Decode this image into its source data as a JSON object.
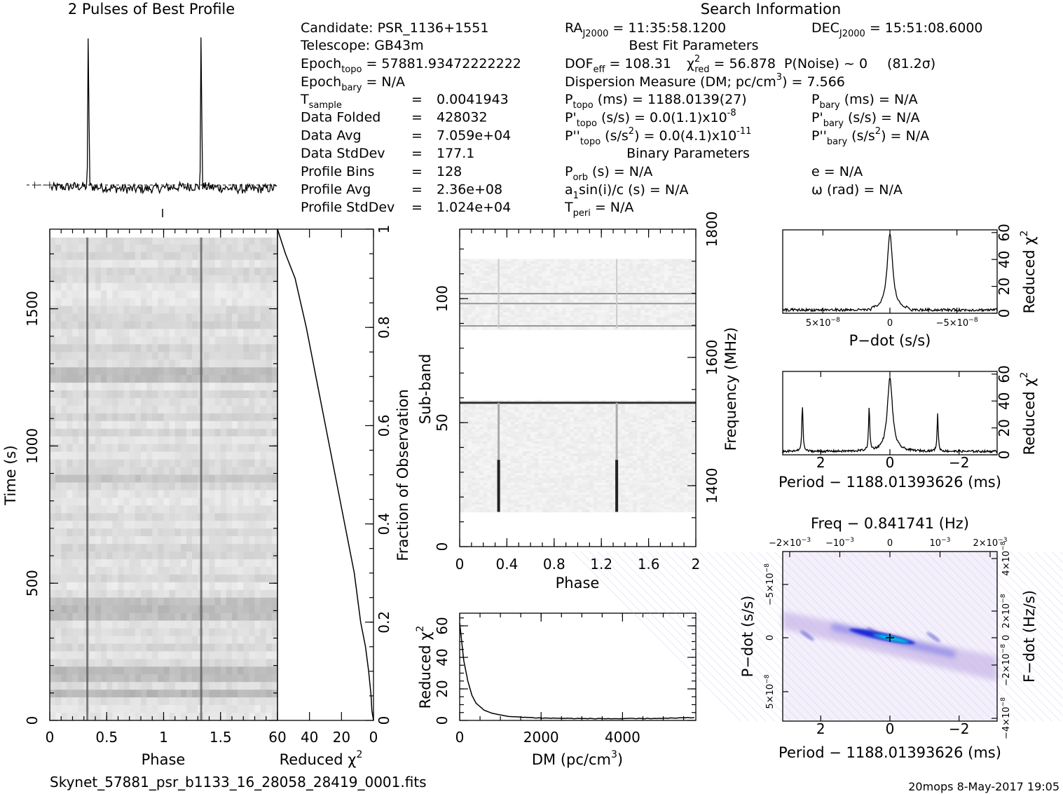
{
  "filename": "Skynet_57881_psr_b1133_16_28058_28419_0001.fits",
  "footer_right": "20mops  8-May-2017 19:05",
  "header": {
    "profile_title": "2 Pulses of Best Profile",
    "search_title": "Search Information",
    "best_fit_title": "Best Fit Parameters",
    "binary_title": "Binary Parameters"
  },
  "candidate_info": {
    "candidate": "Candidate:  PSR_1136+1551",
    "telescope": "Telescope:  GB43m",
    "epoch_topo_label": "Epoch",
    "epoch_topo_sub": "topo",
    "epoch_topo_value": "= 57881.93472222222",
    "epoch_bary_label": "Epoch",
    "epoch_bary_sub": "bary",
    "epoch_bary_value": "= N/A",
    "rows": [
      {
        "label": "T",
        "sub": "sample",
        "eq": "=",
        "value": "0.0041943"
      },
      {
        "label": "Data Folded",
        "sub": "",
        "eq": "=",
        "value": "428032"
      },
      {
        "label": "Data Avg",
        "sub": "",
        "eq": "=",
        "value": "7.059e+04"
      },
      {
        "label": "Data StdDev",
        "sub": "",
        "eq": "=",
        "value": "177.1"
      },
      {
        "label": "Profile Bins",
        "sub": "",
        "eq": "=",
        "value": "128"
      },
      {
        "label": "Profile Avg",
        "sub": "",
        "eq": "=",
        "value": "2.36e+08"
      },
      {
        "label": "Profile StdDev",
        "sub": "",
        "eq": "=",
        "value": "1.024e+04"
      }
    ]
  },
  "search_info": {
    "ra_label": "RA",
    "ra_sub": "J2000",
    "ra_value": "= 11:35:58.1200",
    "dec_label": "DEC",
    "dec_sub": "J2000",
    "dec_value": "= 15:51:08.6000",
    "dof_label": "DOF",
    "dof_sub": "eff",
    "dof_value": "= 108.31",
    "chi_label": "χ",
    "chi_sup": "2",
    "chi_sub": "red",
    "chi_value": "= 56.878",
    "pnoise": "P(Noise) ~ 0",
    "sigma": "(81.2σ)",
    "dm_text": "Dispersion Measure (DM; pc/cm",
    "dm_sup": "3",
    "dm_value": ") = 7.566",
    "ptopo_label": "P",
    "ptopo_sub": "topo",
    "ptopo_value": "(ms) =  1188.0139(27)",
    "pbary_label": "P",
    "pbary_sub": "bary",
    "pbary_value": "(ms) = N/A",
    "pdtopo_label": "P'",
    "pdtopo_sub": "topo",
    "pdtopo_value": "(s/s) = 0.0(1.1)x10",
    "pdtopo_exp": "-8",
    "pdbary_label": "P'",
    "pdbary_sub": "bary",
    "pdbary_value": "(s/s) = N/A",
    "pddtopo_label": "P''",
    "pddtopo_sub": "topo",
    "pddtopo_value": "(s/s",
    "pddtopo_sup": "2",
    "pddtopo_value2": ") = 0.0(4.1)x10",
    "pddtopo_exp": "-11",
    "pddbary_label": "P''",
    "pddbary_sub": "bary",
    "pddbary_value": "(s/s",
    "pddbary_sup": "2",
    "pddbary_value2": ") = N/A",
    "porb_label": "P",
    "porb_sub": "orb",
    "porb_value": "(s) = N/A",
    "e_text": "e = N/A",
    "a1_label": "a",
    "a1_sub": "1",
    "a1_value": "sin(i)/c (s) = N/A",
    "omega_text": "ω (rad) = N/A",
    "tperi_label": "T",
    "tperi_sub": "peri",
    "tperi_value": "= N/A"
  },
  "colors": {
    "line": "#000000",
    "grey_dark": "#555555",
    "ppdot_purple": "#c9b8e8",
    "ppdot_blue": "#1a2ad8",
    "ppdot_cyan": "#00c8e0"
  },
  "chart_data": [
    {
      "id": "profile",
      "type": "line",
      "title": "2 Pulses of Best Profile",
      "x": "phase 0 to 2 (128 bins per pulse)",
      "peaks_phase": [
        0.33,
        1.33
      ],
      "baseline_level": 0.03,
      "peak_level": 1.0
    },
    {
      "id": "time_phase",
      "type": "heatmap",
      "xlabel": "Phase",
      "ylabel": "Time (s)",
      "xlim": [
        0,
        2
      ],
      "ylim": [
        0,
        1790
      ],
      "xticks": [
        "0",
        "0.5",
        "1",
        "1.5"
      ],
      "yticks": [
        "0",
        "500",
        "1000",
        "1500"
      ],
      "pulse_phase": [
        0.33,
        1.33
      ],
      "dark_time_bands": [
        100,
        160,
        380,
        430,
        880,
        1260
      ]
    },
    {
      "id": "time_chi2",
      "type": "line",
      "xlabel": "Reduced χ",
      "xlabel_sup": "2",
      "ylabel": "Fraction of Observation",
      "xlim": [
        60,
        0
      ],
      "ylim": [
        0,
        1
      ],
      "xticks": [
        "60",
        "40",
        "20",
        "0"
      ],
      "yticks": [
        "0",
        "0.2",
        "0.4",
        "0.6",
        "0.8",
        "1"
      ],
      "points_chi2_vs_fraction": [
        [
          0,
          0
        ],
        [
          1,
          0.02
        ],
        [
          1.5,
          0.05
        ],
        [
          3,
          0.1
        ],
        [
          5,
          0.15
        ],
        [
          8,
          0.2
        ],
        [
          12,
          0.3
        ],
        [
          18,
          0.4
        ],
        [
          24,
          0.5
        ],
        [
          30,
          0.6
        ],
        [
          36,
          0.7
        ],
        [
          42,
          0.8
        ],
        [
          49,
          0.9
        ],
        [
          55,
          0.95
        ],
        [
          60,
          1.0
        ]
      ]
    },
    {
      "id": "subband_phase",
      "type": "heatmap",
      "xlabel": "Phase",
      "ylabel": "Sub-band",
      "y2label": "Frequency (MHz)",
      "xlim": [
        0,
        2
      ],
      "ylim": [
        0,
        128
      ],
      "xticks": [
        "0",
        "0.4",
        "0.8",
        "1.2",
        "1.6",
        "2"
      ],
      "yticks": [
        "0",
        "50",
        "100"
      ],
      "y2ticks": [
        "1400",
        "1600",
        "1800"
      ],
      "signal_subbands": [
        14,
        58
      ],
      "empty_subbands": [
        59,
        88
      ],
      "rfi_subbands": [
        58,
        89,
        98,
        102
      ]
    },
    {
      "id": "dm_chi2",
      "type": "line",
      "xlabel": "DM (pc/cm",
      "xlabel_sup": "3",
      "xlabel_tail": ")",
      "ylabel": "Reduced χ",
      "ylabel_sup": "2",
      "xlim": [
        0,
        5800
      ],
      "ylim": [
        0,
        68
      ],
      "xticks": [
        "0",
        "2000",
        "4000"
      ],
      "yticks": [
        "0",
        "20",
        "40",
        "60"
      ],
      "points": [
        [
          0,
          62
        ],
        [
          50,
          50
        ],
        [
          100,
          38
        ],
        [
          200,
          25
        ],
        [
          300,
          16
        ],
        [
          400,
          11
        ],
        [
          600,
          6.5
        ],
        [
          800,
          4.5
        ],
        [
          1200,
          2.5
        ],
        [
          2000,
          1.5
        ],
        [
          3000,
          1.2
        ],
        [
          4000,
          1.1
        ],
        [
          5000,
          1.3
        ],
        [
          5800,
          1.8
        ]
      ]
    },
    {
      "id": "pdot_chi2",
      "type": "line",
      "xlabel": "P−dot (s/s)",
      "ylabel": "Reduced χ",
      "ylabel_sup": "2",
      "xlim": [
        8e-08,
        -8e-08
      ],
      "ylim": [
        0,
        62
      ],
      "xticks": [
        "5×10",
        "0",
        "−5×10"
      ],
      "xtick_exp": "−8",
      "yticks": [
        "0",
        "20",
        "40",
        "60"
      ],
      "peak": 57,
      "peak_at": 0
    },
    {
      "id": "period_chi2",
      "type": "line",
      "xlabel": "Period − 1188.01393626 (ms)",
      "ylabel": "Reduced χ",
      "ylabel_sup": "2",
      "xlim": [
        3.1,
        -3.1
      ],
      "ylim": [
        0,
        62
      ],
      "xticks": [
        "2",
        "0",
        "−2"
      ],
      "yticks": [
        "0",
        "20",
        "40",
        "60"
      ],
      "peaks": [
        [
          2.53,
          37
        ],
        [
          0.6,
          35
        ],
        [
          0,
          57
        ],
        [
          -1.38,
          30
        ]
      ]
    },
    {
      "id": "ppdot_plane",
      "type": "heatmap",
      "title": "Freq − 0.841741 (Hz)",
      "xlabel": "Period − 1188.01393626 (ms)",
      "ylabel": "P−dot (s/s)",
      "y2label": "F−dot (Hz/s)",
      "xlim": [
        3.1,
        -3.1
      ],
      "xticks": [
        "2",
        "0",
        "−2"
      ],
      "x2ticks": [
        "−2×10",
        "−10",
        "0",
        "10",
        "2×10"
      ],
      "x2tick_exp": "−3",
      "yticks": [
        "5×10",
        "0",
        "−5×10"
      ],
      "ytick_exp": "−8",
      "y2ticks": [
        "−4×10",
        "−2×10",
        "0",
        "2×10",
        "4×10"
      ],
      "y2tick_exp": "−8",
      "best": [
        0,
        0
      ]
    }
  ]
}
